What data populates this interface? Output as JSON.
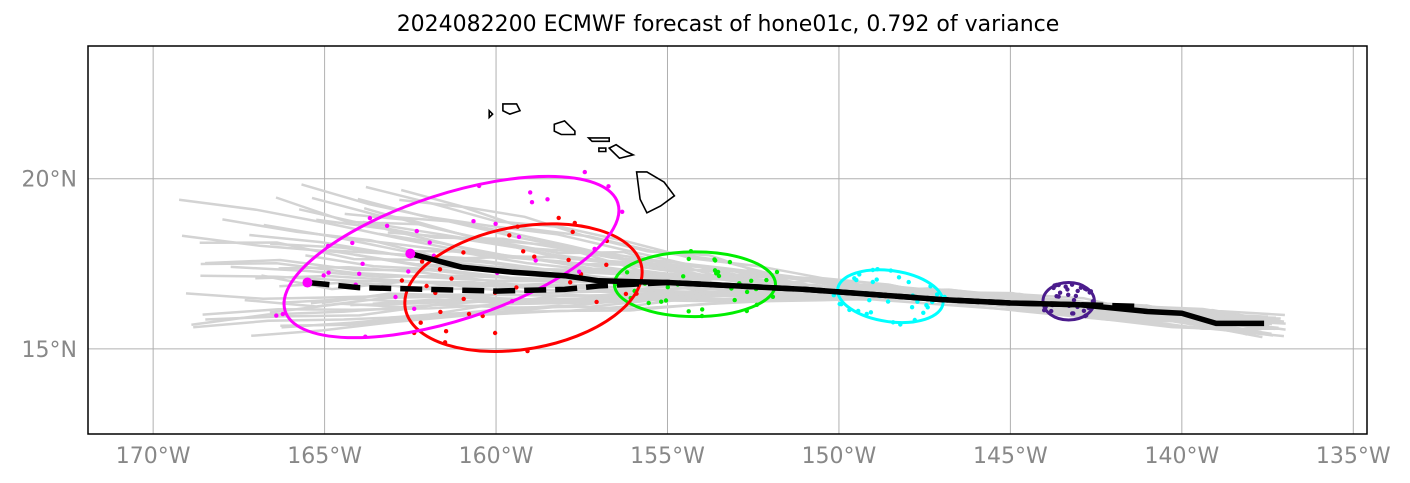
{
  "title": "2024082200 ECMWF forecast of hone01c, 0.792 of variance",
  "map": {
    "lon_range": [
      -171.9,
      -134.6
    ],
    "lat_range": [
      12.5,
      23.9
    ],
    "grid": true,
    "lon_ticks": [
      {
        "value": -170,
        "label": "170°W"
      },
      {
        "value": -165,
        "label": "165°W"
      },
      {
        "value": -160,
        "label": "160°W"
      },
      {
        "value": -155,
        "label": "155°W"
      },
      {
        "value": -150,
        "label": "150°W"
      },
      {
        "value": -145,
        "label": "145°W"
      },
      {
        "value": -140,
        "label": "140°W"
      },
      {
        "value": -135,
        "label": "135°W"
      }
    ],
    "lat_ticks": [
      {
        "value": 20,
        "label": "20°N"
      },
      {
        "value": 15,
        "label": "15°N"
      }
    ]
  },
  "colors": {
    "ensemble": "#d3d3d3",
    "mean": "#000000",
    "grid": "#b0b0b0",
    "coast": "#000000",
    "clusters": [
      "#4b1c8c",
      "#00ffff",
      "#00ee00",
      "#ff0000",
      "#ff00ff"
    ]
  },
  "islands": [
    {
      "name": "Hawaii",
      "points": [
        [
          -155.9,
          20.2
        ],
        [
          -155.8,
          19.4
        ],
        [
          -155.6,
          19.0
        ],
        [
          -155.2,
          19.2
        ],
        [
          -154.8,
          19.5
        ],
        [
          -155.1,
          19.9
        ],
        [
          -155.6,
          20.2
        ]
      ]
    },
    {
      "name": "Maui",
      "points": [
        [
          -156.7,
          20.9
        ],
        [
          -156.5,
          21.0
        ],
        [
          -156.2,
          20.8
        ],
        [
          -156.0,
          20.7
        ],
        [
          -156.4,
          20.6
        ],
        [
          -156.6,
          20.8
        ]
      ]
    },
    {
      "name": "Molokai",
      "points": [
        [
          -157.3,
          21.2
        ],
        [
          -156.7,
          21.2
        ],
        [
          -156.7,
          21.1
        ],
        [
          -157.2,
          21.1
        ]
      ]
    },
    {
      "name": "Lanai",
      "points": [
        [
          -157.0,
          20.9
        ],
        [
          -156.8,
          20.9
        ],
        [
          -156.8,
          20.8
        ],
        [
          -157.0,
          20.8
        ]
      ]
    },
    {
      "name": "Oahu",
      "points": [
        [
          -158.3,
          21.6
        ],
        [
          -158.0,
          21.7
        ],
        [
          -157.7,
          21.4
        ],
        [
          -157.7,
          21.3
        ],
        [
          -158.1,
          21.3
        ],
        [
          -158.3,
          21.4
        ]
      ]
    },
    {
      "name": "Kauai",
      "points": [
        [
          -159.8,
          22.2
        ],
        [
          -159.4,
          22.2
        ],
        [
          -159.3,
          22.0
        ],
        [
          -159.6,
          21.9
        ],
        [
          -159.8,
          22.0
        ]
      ]
    },
    {
      "name": "Niihau",
      "points": [
        [
          -160.2,
          22.0
        ],
        [
          -160.1,
          21.9
        ],
        [
          -160.2,
          21.8
        ],
        [
          -160.2,
          21.9
        ]
      ]
    }
  ],
  "mean_tracks": [
    {
      "style": "solid",
      "start": [
        -162.5,
        17.8
      ],
      "points": [
        [
          -162.5,
          17.8
        ],
        [
          -161,
          17.4
        ],
        [
          -159.5,
          17.25
        ],
        [
          -158,
          17.15
        ],
        [
          -157,
          17.0
        ],
        [
          -155,
          16.95
        ],
        [
          -153,
          16.85
        ],
        [
          -151,
          16.75
        ],
        [
          -149,
          16.6
        ],
        [
          -147,
          16.45
        ],
        [
          -145,
          16.35
        ],
        [
          -143,
          16.3
        ],
        [
          -141,
          16.1
        ],
        [
          -140,
          16.05
        ],
        [
          -139,
          15.75
        ],
        [
          -137.6,
          15.75
        ]
      ]
    },
    {
      "style": "dashed",
      "start": [
        -165.5,
        16.95
      ],
      "points": [
        [
          -165.5,
          16.95
        ],
        [
          -164,
          16.8
        ],
        [
          -162,
          16.75
        ],
        [
          -160,
          16.7
        ],
        [
          -158,
          16.75
        ],
        [
          -157,
          16.85
        ],
        [
          -155,
          16.95
        ],
        [
          -153,
          16.85
        ],
        [
          -151,
          16.75
        ],
        [
          -149,
          16.6
        ],
        [
          -147,
          16.45
        ],
        [
          -145,
          16.35
        ],
        [
          -143,
          16.3
        ],
        [
          -141.3,
          16.25
        ]
      ]
    }
  ],
  "cluster_ellipses": [
    {
      "color_index": 0,
      "center": [
        -143.3,
        16.4
      ],
      "rx": 0.75,
      "ry": 0.55,
      "angle_deg": 0
    },
    {
      "color_index": 1,
      "center": [
        -148.5,
        16.55
      ],
      "rx": 1.55,
      "ry": 0.75,
      "angle_deg": 8
    },
    {
      "color_index": 2,
      "center": [
        -154.2,
        16.9
      ],
      "rx": 2.35,
      "ry": 0.95,
      "angle_deg": 0
    },
    {
      "color_index": 3,
      "center": [
        -159.2,
        16.8
      ],
      "rx": 3.5,
      "ry": 1.8,
      "angle_deg": -10
    },
    {
      "color_index": 4,
      "center": [
        -161.3,
        17.7
      ],
      "rx": 5.1,
      "ry": 1.85,
      "angle_deg": -18
    }
  ],
  "ensemble_tracks": 50
}
